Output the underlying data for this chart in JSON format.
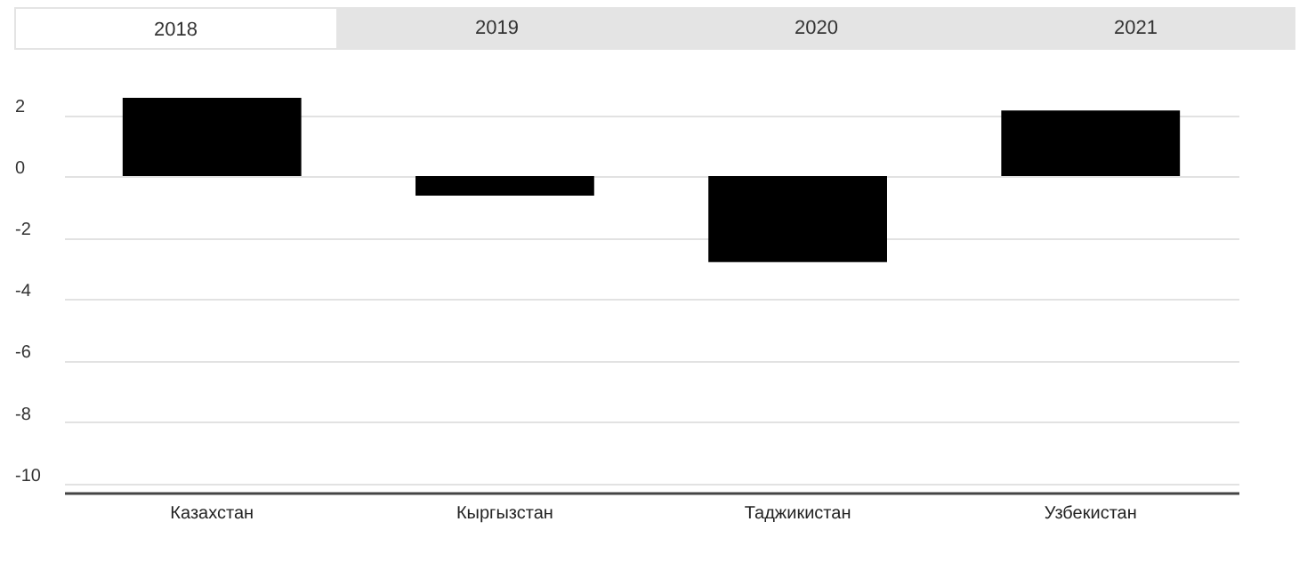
{
  "chart_data": {
    "type": "bar",
    "annotations": [
      "2018",
      "2019",
      "2020",
      "2021"
    ],
    "categories": [
      "Казахстан",
      "Кыргызстан",
      "Таджикистан",
      "Узбекистан"
    ],
    "values": [
      2.55,
      -0.63,
      -2.8,
      2.14
    ],
    "color": "#000000",
    "ylim": [
      -10.3,
      2.55
    ],
    "yticks": [
      -10,
      -8,
      -6,
      -4,
      -2,
      0,
      2
    ],
    "grid": "y"
  }
}
